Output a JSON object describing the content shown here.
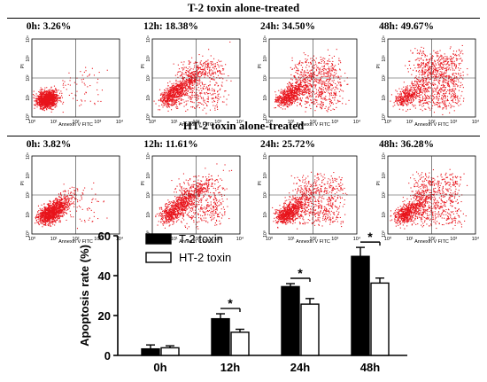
{
  "sections": [
    {
      "title": "T-2 toxin alone-treated",
      "panels": [
        {
          "label": "0h: 3.26%",
          "x_axis_label": "Annexin V FITC",
          "y_axis_label": "PI"
        },
        {
          "label": "12h: 18.38%",
          "x_axis_label": "Annexin V FITC",
          "y_axis_label": "PI"
        },
        {
          "label": "24h: 34.50%",
          "x_axis_label": "Annexin V FITC",
          "y_axis_label": "PI"
        },
        {
          "label": "48h: 49.67%",
          "x_axis_label": "Annexin V FITC",
          "y_axis_label": "PI"
        }
      ]
    },
    {
      "title": "HT-2 toxin alone-treated",
      "panels": [
        {
          "label": "0h: 3.82%",
          "x_axis_label": "Annexin V FITC",
          "y_axis_label": "PI"
        },
        {
          "label": "12h: 11.61%",
          "x_axis_label": "Annexin V FITC",
          "y_axis_label": "PI"
        },
        {
          "label": "24h: 25.72%",
          "x_axis_label": "Annexin V FITC",
          "y_axis_label": "PI"
        },
        {
          "label": "48h: 36.28%",
          "x_axis_label": "Annexin V FITC",
          "y_axis_label": "PI"
        }
      ]
    }
  ],
  "flow_axis": {
    "x_ticks": [
      "10⁰",
      "10¹",
      "10²",
      "10³",
      "10⁴"
    ],
    "y_ticks": [
      "10⁰",
      "10¹",
      "10²",
      "10³",
      "10⁴"
    ]
  },
  "chart_data": {
    "type": "bar",
    "categories": [
      "0h",
      "12h",
      "24h",
      "48h"
    ],
    "series": [
      {
        "name": "T-2 toxin",
        "values": [
          3.26,
          18.38,
          34.5,
          49.67
        ],
        "errors": [
          2.0,
          2.5,
          1.5,
          4.5
        ],
        "color": "#000000"
      },
      {
        "name": "HT-2 toxin",
        "values": [
          3.82,
          11.61,
          25.72,
          36.28
        ],
        "errors": [
          1.0,
          1.5,
          2.8,
          2.5
        ],
        "color": "#ffffff"
      }
    ],
    "ylabel": "Apoptosis rate (%)",
    "xlabel": "",
    "ylim": [
      0,
      60
    ],
    "yticks": [
      0,
      20,
      40,
      60
    ],
    "significance": [
      {
        "category": "12h",
        "label": "*"
      },
      {
        "category": "24h",
        "label": "*"
      },
      {
        "category": "48h",
        "label": "*"
      }
    ],
    "legend_position": "top-center"
  },
  "colors": {
    "dots": "#e8141c",
    "axes": "#000000"
  }
}
